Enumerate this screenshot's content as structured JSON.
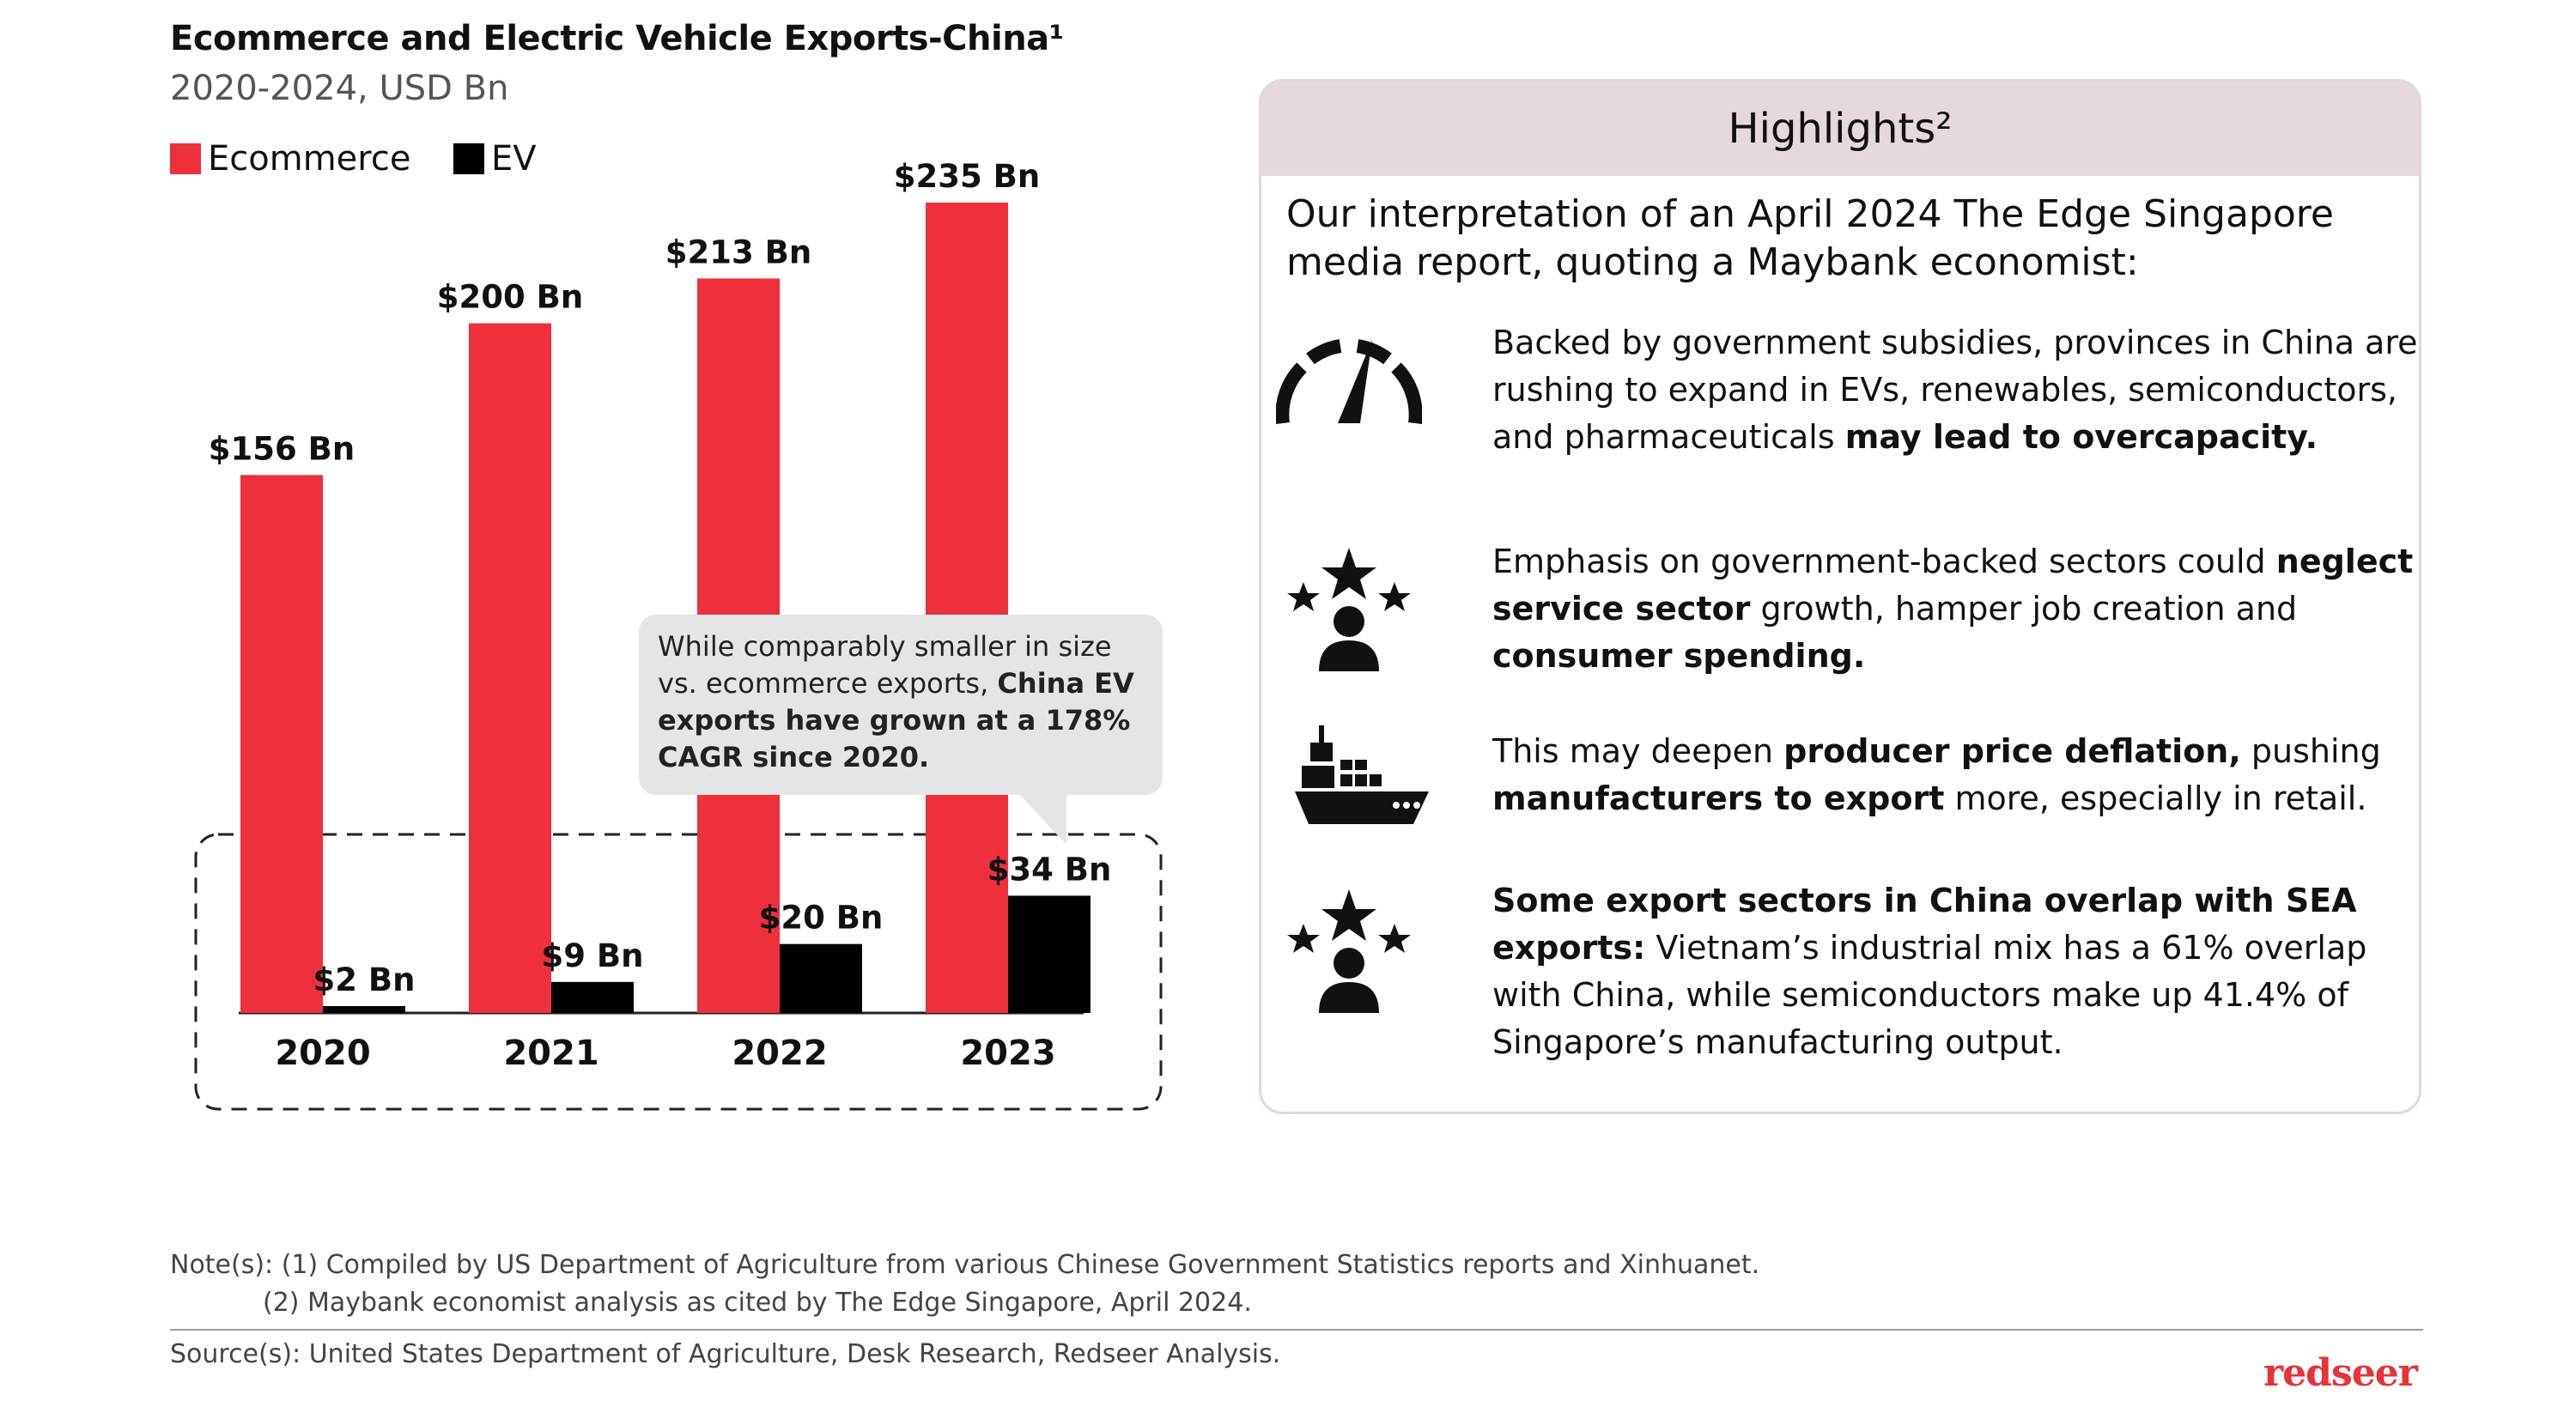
{
  "title": "Ecommerce and Electric Vehicle Exports-China¹",
  "subtitle": "2020-2024, USD Bn",
  "legend": [
    {
      "label": "Ecommerce",
      "color": "#ee2f3c"
    },
    {
      "label": "EV",
      "color": "#000000"
    }
  ],
  "chart_data": {
    "type": "bar",
    "title": "Ecommerce and Electric Vehicle Exports-China¹",
    "subtitle": "2020-2024, USD Bn",
    "categories": [
      "2020",
      "2021",
      "2022",
      "2023"
    ],
    "series": [
      {
        "name": "Ecommerce",
        "color": "#ee2f3c",
        "values": [
          156,
          200,
          213,
          235
        ],
        "labels": [
          "$156 Bn",
          "$200 Bn",
          "$213 Bn",
          "$235 Bn"
        ]
      },
      {
        "name": "EV",
        "color": "#000000",
        "values": [
          2,
          9,
          20,
          34
        ],
        "labels": [
          "$2 Bn",
          "$9 Bn",
          "$20 Bn",
          "$34 Bn"
        ]
      }
    ],
    "ylim": [
      0,
      250
    ],
    "grid": false,
    "legend_position": "top-left"
  },
  "callout": {
    "text_plain": "While comparably smaller in size vs. ecommerce exports, ",
    "text_bold": "China EV exports have grown at a 178% CAGR since 2020."
  },
  "highlights": {
    "header": "Highlights²",
    "intro": "Our interpretation of an April 2024 The Edge Singapore media report, quoting a Maybank economist:",
    "items": [
      {
        "icon": "speedometer-icon",
        "parts": [
          {
            "t": "Backed by government subsidies, provinces in China are rushing to expand in EVs, renewables, semiconductors, and pharmaceuticals ",
            "b": false
          },
          {
            "t": "may lead to overcapacity.",
            "b": true
          }
        ]
      },
      {
        "icon": "person-stars-icon",
        "parts": [
          {
            "t": "Emphasis on government-backed sectors could ",
            "b": false
          },
          {
            "t": "neglect service sector",
            "b": true
          },
          {
            "t": " growth, hamper job creation and ",
            "b": false
          },
          {
            "t": "consumer spending.",
            "b": true
          }
        ]
      },
      {
        "icon": "cargo-ship-icon",
        "parts": [
          {
            "t": "This may deepen ",
            "b": false
          },
          {
            "t": "producer price deflation,",
            "b": true
          },
          {
            "t": " pushing ",
            "b": false
          },
          {
            "t": "manufacturers to export",
            "b": true
          },
          {
            "t": " more, especially in retail.",
            "b": false
          }
        ]
      },
      {
        "icon": "person-stars-icon",
        "parts": [
          {
            "t": "Some export sectors in China overlap with SEA exports:",
            "b": true
          },
          {
            "t": " Vietnam’s industrial mix has a 61% overlap with China, while semiconductors make up 41.4% of Singapore’s manufacturing output.",
            "b": false
          }
        ]
      }
    ]
  },
  "notes": {
    "line1": "Note(s): (1) Compiled by US Department of Agriculture from various Chinese Government Statistics reports and Xinhuanet.",
    "line2": "(2) Maybank economist analysis as cited by The Edge Singapore, April 2024."
  },
  "source": "Source(s): United States Department of Agriculture, Desk Research, Redseer Analysis.",
  "brand": "redseer"
}
